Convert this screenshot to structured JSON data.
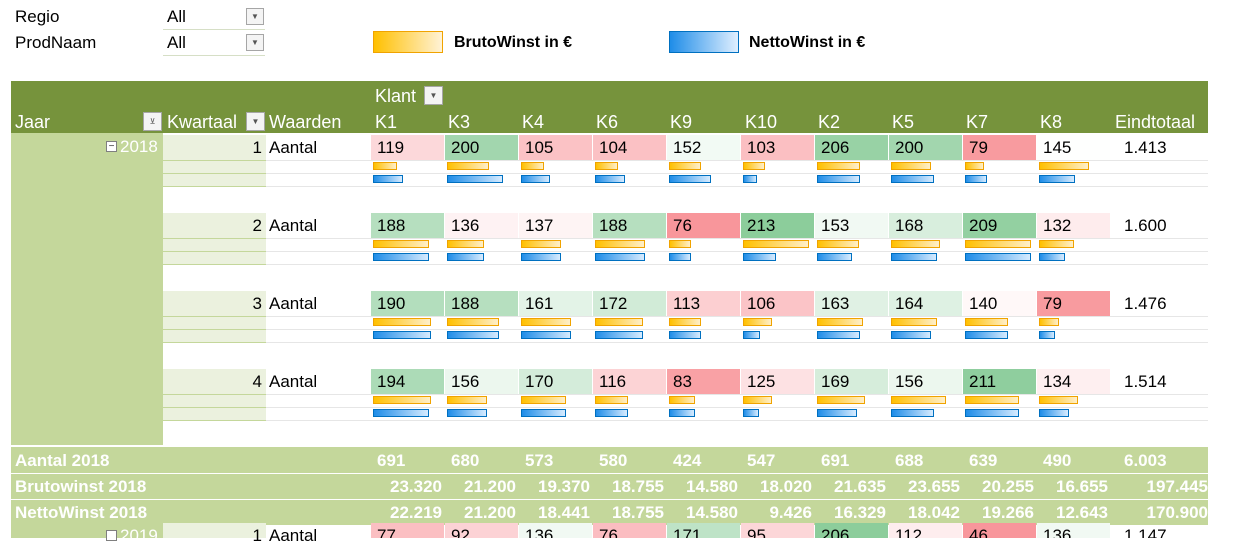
{
  "filters": [
    {
      "label": "Regio",
      "value": "All"
    },
    {
      "label": "ProdNaam",
      "value": "All"
    }
  ],
  "legend": {
    "bruto": "BrutoWinst in €",
    "netto": "NettoWinst in €",
    "bruto_color": "#ffc000",
    "netto_color": "#1f8de8"
  },
  "header": {
    "klant": "Klant",
    "jaar": "Jaar",
    "kwartaal": "Kwartaal",
    "waarden": "Waarden",
    "eindtotaal": "Eindtotaal",
    "customers": [
      "K1",
      "K3",
      "K4",
      "K6",
      "K9",
      "K10",
      "K2",
      "K5",
      "K7",
      "K8"
    ]
  },
  "year2018": {
    "label": "2018",
    "quarters": [
      {
        "q": "1",
        "measure": "Aantal",
        "values": [
          "119",
          "200",
          "105",
          "104",
          "152",
          "103",
          "206",
          "200",
          "79",
          "145"
        ],
        "total": "1.413",
        "bruto": [
          0.33,
          0.58,
          0.32,
          0.32,
          0.44,
          0.3,
          0.6,
          0.56,
          0.26,
          0.7
        ],
        "netto": [
          0.42,
          0.78,
          0.4,
          0.42,
          0.58,
          0.2,
          0.6,
          0.6,
          0.3,
          0.5
        ]
      },
      {
        "q": "2",
        "measure": "Aantal",
        "values": [
          "188",
          "136",
          "137",
          "188",
          "76",
          "213",
          "153",
          "168",
          "209",
          "132"
        ],
        "total": "1.600",
        "bruto": [
          0.78,
          0.52,
          0.55,
          0.7,
          0.3,
          0.92,
          0.58,
          0.68,
          0.92,
          0.48
        ],
        "netto": [
          0.78,
          0.52,
          0.55,
          0.7,
          0.3,
          0.46,
          0.48,
          0.64,
          0.92,
          0.36
        ]
      },
      {
        "q": "3",
        "measure": "Aantal",
        "values": [
          "190",
          "188",
          "161",
          "172",
          "113",
          "106",
          "163",
          "164",
          "140",
          "79"
        ],
        "total": "1.476",
        "bruto": [
          0.8,
          0.72,
          0.7,
          0.66,
          0.45,
          0.4,
          0.64,
          0.64,
          0.6,
          0.28
        ],
        "netto": [
          0.8,
          0.72,
          0.7,
          0.66,
          0.45,
          0.24,
          0.6,
          0.56,
          0.6,
          0.22
        ]
      },
      {
        "q": "4",
        "measure": "Aantal",
        "values": [
          "194",
          "156",
          "170",
          "116",
          "83",
          "125",
          "169",
          "156",
          "211",
          "134"
        ],
        "total": "1.514",
        "bruto": [
          0.8,
          0.56,
          0.62,
          0.46,
          0.36,
          0.4,
          0.66,
          0.76,
          0.75,
          0.54
        ],
        "netto": [
          0.78,
          0.56,
          0.62,
          0.46,
          0.36,
          0.22,
          0.56,
          0.6,
          0.75,
          0.42
        ]
      }
    ]
  },
  "totals": [
    {
      "label": "Aantal 2018",
      "values": [
        "691",
        "680",
        "573",
        "580",
        "424",
        "547",
        "691",
        "688",
        "639",
        "490"
      ],
      "total": "6.003"
    },
    {
      "label": "Brutowinst 2018",
      "values": [
        "23.320",
        "21.200",
        "19.370",
        "18.755",
        "14.580",
        "18.020",
        "21.635",
        "23.655",
        "20.255",
        "16.655"
      ],
      "total": "197.445"
    },
    {
      "label": "NettoWinst 2018",
      "values": [
        "22.219",
        "21.200",
        "18.441",
        "18.755",
        "14.580",
        "9.426",
        "16.329",
        "18.042",
        "19.266",
        "12.643"
      ],
      "total": "170.900"
    }
  ],
  "year2019": {
    "label": "2019",
    "q": "1",
    "measure": "Aantal",
    "values": [
      "77",
      "92",
      "136",
      "76",
      "171",
      "95",
      "206",
      "112",
      "46",
      "136"
    ],
    "total": "1.147"
  }
}
